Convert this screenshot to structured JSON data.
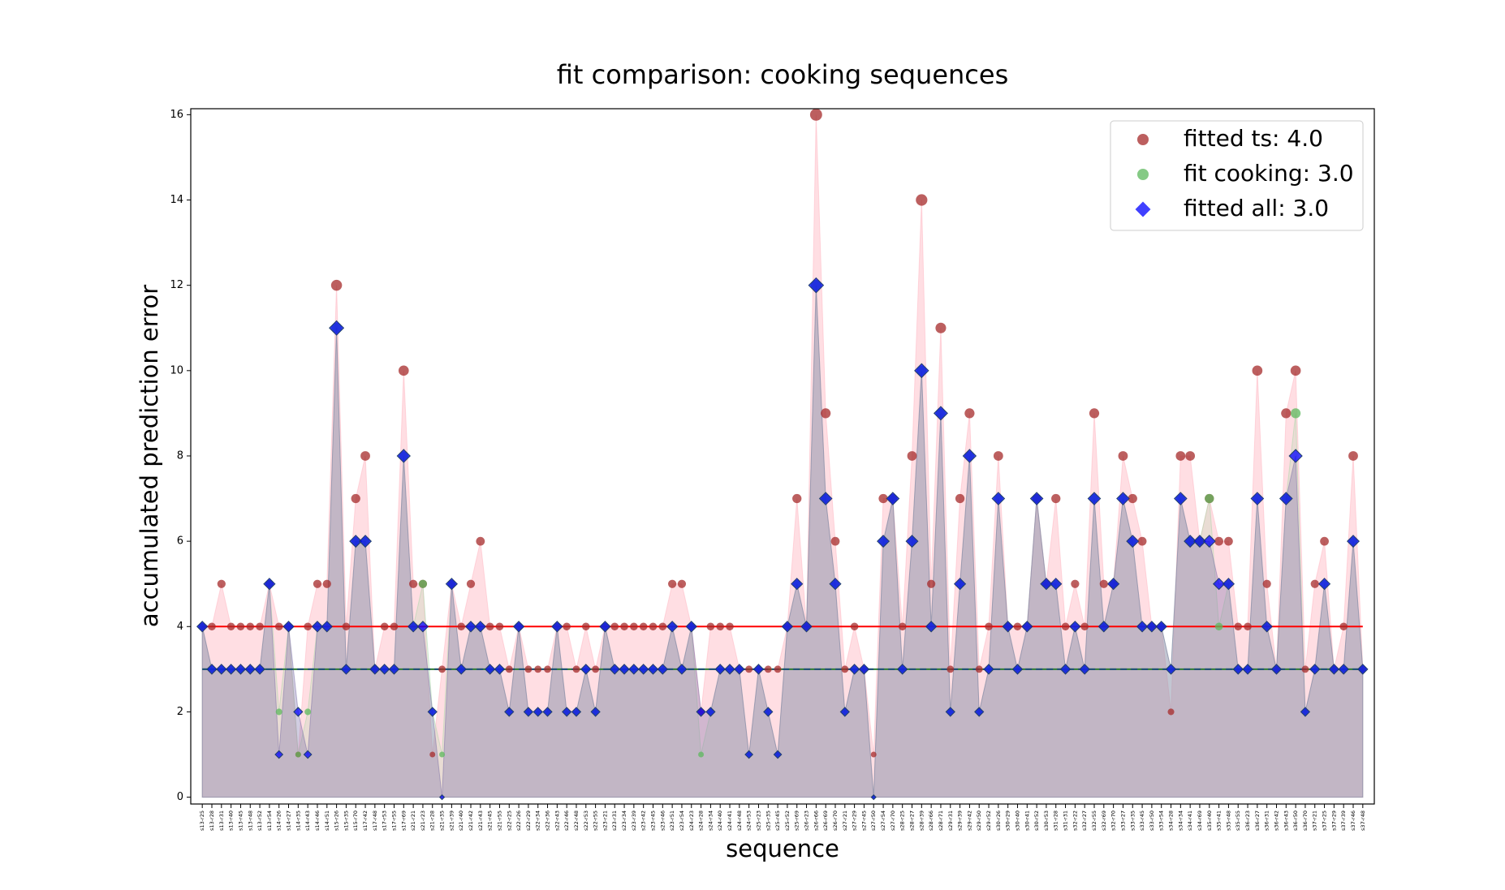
{
  "chart_data": {
    "type": "scatter_area",
    "title": "fit comparison: cooking sequences",
    "xlabel": "sequence",
    "ylabel": "accumulated prediction error",
    "categories": [
      "s13-r25",
      "s13-r28",
      "s13-r31",
      "s13-r40",
      "s13-r45",
      "s13-r48",
      "s13-r52",
      "s13-r54",
      "s14-r26",
      "s14-r27",
      "s14-r35",
      "s14-r43",
      "s14-r46",
      "s14-r51",
      "s15-r26",
      "s15-r35",
      "s15-r70",
      "s17-r42",
      "s17-r48",
      "s17-r53",
      "s17-r55",
      "s17-r69",
      "s21-r21",
      "s21-r23",
      "s21-r28",
      "s21-r35",
      "s21-r39",
      "s21-r40",
      "s21-r42",
      "s21-r43",
      "s21-r45",
      "s21-r55",
      "s22-r25",
      "s22-r26",
      "s22-r29",
      "s22-r34",
      "s22-r36",
      "s22-r43",
      "s22-r46",
      "s22-r48",
      "s22-r53",
      "s22-r55",
      "s23-r21",
      "s23-r31",
      "s23-r34",
      "s23-r39",
      "s23-r42",
      "s23-r45",
      "s23-r46",
      "s23-r51",
      "s23-r54",
      "s24-r23",
      "s24-r28",
      "s24-r34",
      "s24-r40",
      "s24-r41",
      "s24-r48",
      "s24-r53",
      "s25-r23",
      "s25-r35",
      "s25-r45",
      "s25-r52",
      "s25-r69",
      "s26-r23",
      "s26-r66",
      "s26-r69",
      "s26-r70",
      "s27-r21",
      "s27-r29",
      "s27-r45",
      "s27-r50",
      "s27-r54",
      "s27-r70",
      "s28-r25",
      "s28-r27",
      "s28-r39",
      "s28-r66",
      "s28-r71",
      "s29-r31",
      "s29-r39",
      "s29-r42",
      "s29-r50",
      "s29-r52",
      "s30-r26",
      "s30-r29",
      "s30-r40",
      "s30-r41",
      "s30-r52",
      "s30-r53",
      "s31-r28",
      "s31-r31",
      "s32-r22",
      "s32-r27",
      "s32-r55",
      "s32-r69",
      "s32-r70",
      "s33-r27",
      "s33-r35",
      "s33-r45",
      "s33-r50",
      "s33-r54",
      "s34-r28",
      "s34-r34",
      "s34-r41",
      "s34-r69",
      "s35-r40",
      "s35-r41",
      "s35-r48",
      "s35-r55",
      "s36-r23",
      "s36-r27",
      "s36-r31",
      "s36-r42",
      "s36-r43",
      "s36-r50",
      "s36-r70",
      "s37-r21",
      "s37-r25",
      "s37-r29",
      "s37-r39",
      "s37-r46",
      "s37-r48"
    ],
    "series": [
      {
        "name": "fitted ts: 4.0",
        "fit": 4,
        "marker": "circle",
        "color": "#a52a2a",
        "line_color": "#ff0000",
        "fill": "#ffb6c1",
        "values": [
          4,
          4,
          5,
          4,
          4,
          4,
          4,
          5,
          4,
          4,
          1,
          4,
          5,
          5,
          12,
          4,
          7,
          8,
          3,
          4,
          4,
          10,
          5,
          5,
          1,
          3,
          5,
          4,
          5,
          6,
          4,
          4,
          3,
          4,
          3,
          3,
          3,
          4,
          4,
          3,
          4,
          3,
          4,
          4,
          4,
          4,
          4,
          4,
          4,
          5,
          5,
          4,
          2,
          4,
          4,
          4,
          3,
          3,
          3,
          3,
          3,
          4,
          7,
          4,
          16,
          9,
          6,
          3,
          4,
          3,
          1,
          7,
          7,
          4,
          8,
          14,
          5,
          11,
          3,
          7,
          9,
          3,
          4,
          8,
          4,
          4,
          4,
          7,
          5,
          7,
          4,
          5,
          4,
          9,
          5,
          5,
          8,
          7,
          6,
          4,
          4,
          2,
          8,
          8,
          6,
          7,
          6,
          6,
          4,
          4,
          10,
          5,
          3,
          9,
          10,
          3,
          5,
          6,
          3,
          4,
          8,
          3
        ]
      },
      {
        "name": "fit cooking: 3.0",
        "fit": 3,
        "marker": "circle",
        "color": "#5cb85c",
        "line_color": "#2e7d32",
        "fill": "#a8d8a8",
        "values": [
          4,
          3,
          3,
          3,
          3,
          3,
          3,
          5,
          2,
          4,
          1,
          2,
          4,
          4,
          11,
          3,
          6,
          6,
          3,
          3,
          3,
          8,
          4,
          5,
          2,
          1,
          5,
          3,
          4,
          4,
          3,
          3,
          2,
          4,
          2,
          2,
          2,
          4,
          2,
          2,
          3,
          2,
          4,
          3,
          3,
          3,
          3,
          3,
          3,
          4,
          3,
          4,
          1,
          2,
          3,
          3,
          3,
          1,
          3,
          2,
          1,
          4,
          5,
          4,
          12,
          7,
          5,
          2,
          3,
          3,
          0,
          6,
          7,
          3,
          6,
          10,
          4,
          9,
          2,
          5,
          8,
          2,
          3,
          7,
          4,
          3,
          4,
          7,
          5,
          5,
          3,
          4,
          3,
          7,
          4,
          5,
          7,
          6,
          4,
          4,
          4,
          3,
          7,
          6,
          6,
          7,
          4,
          5,
          3,
          3,
          7,
          4,
          3,
          7,
          9,
          2,
          3,
          5,
          3,
          3,
          6,
          3
        ]
      },
      {
        "name": "fitted all: 3.0",
        "fit": 3,
        "marker": "diamond",
        "color": "#0000ff",
        "line_color": "#1f4e79",
        "fill": "#7b6fa8",
        "values": [
          4,
          3,
          3,
          3,
          3,
          3,
          3,
          5,
          1,
          4,
          2,
          1,
          4,
          4,
          11,
          3,
          6,
          6,
          3,
          3,
          3,
          8,
          4,
          4,
          2,
          0,
          5,
          3,
          4,
          4,
          3,
          3,
          2,
          4,
          2,
          2,
          2,
          4,
          2,
          2,
          3,
          2,
          4,
          3,
          3,
          3,
          3,
          3,
          3,
          4,
          3,
          4,
          2,
          2,
          3,
          3,
          3,
          1,
          3,
          2,
          1,
          4,
          5,
          4,
          12,
          7,
          5,
          2,
          3,
          3,
          0,
          6,
          7,
          3,
          6,
          10,
          4,
          9,
          2,
          5,
          8,
          2,
          3,
          7,
          4,
          3,
          4,
          7,
          5,
          5,
          3,
          4,
          3,
          7,
          4,
          5,
          7,
          6,
          4,
          4,
          4,
          3,
          7,
          6,
          6,
          6,
          5,
          5,
          3,
          3,
          7,
          4,
          3,
          7,
          8,
          2,
          3,
          5,
          3,
          3,
          6,
          3
        ]
      }
    ],
    "ylim": [
      -0.16,
      16.14
    ],
    "yticks": [
      0,
      2,
      4,
      6,
      8,
      10,
      12,
      14,
      16
    ],
    "legend": "upper right",
    "grid": false
  }
}
